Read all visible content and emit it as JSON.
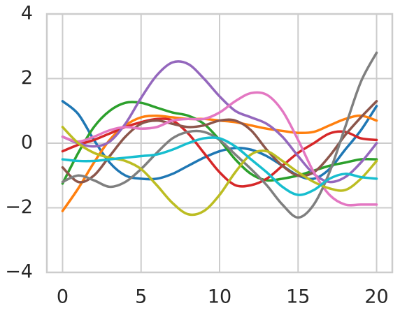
{
  "chart_data": {
    "type": "line",
    "x": [
      0,
      1,
      2,
      3,
      4,
      5,
      6,
      7,
      8,
      9,
      10,
      11,
      12,
      13,
      14,
      15,
      16,
      17,
      18,
      19,
      20
    ],
    "series": [
      {
        "color": "#1f77b4",
        "values": [
          1.3,
          0.9,
          0.1,
          -0.6,
          -1.0,
          -1.1,
          -1.1,
          -0.95,
          -0.7,
          -0.45,
          -0.25,
          -0.15,
          -0.2,
          -0.4,
          -0.7,
          -1.0,
          -1.1,
          -0.8,
          -0.2,
          0.4,
          1.15
        ]
      },
      {
        "color": "#ff7f0e",
        "values": [
          -2.1,
          -1.4,
          -0.6,
          0.1,
          0.55,
          0.8,
          0.85,
          0.8,
          0.75,
          0.75,
          0.7,
          0.65,
          0.55,
          0.45,
          0.38,
          0.32,
          0.35,
          0.55,
          0.75,
          0.85,
          0.7
        ]
      },
      {
        "color": "#2ca02c",
        "values": [
          -1.25,
          -0.3,
          0.5,
          1.0,
          1.25,
          1.25,
          1.1,
          0.95,
          0.85,
          0.6,
          0.1,
          -0.5,
          -0.95,
          -1.15,
          -1.1,
          -1.0,
          -0.85,
          -0.7,
          -0.6,
          -0.5,
          -0.5
        ]
      },
      {
        "color": "#d62728",
        "values": [
          -0.25,
          -0.05,
          0.1,
          0.3,
          0.5,
          0.65,
          0.75,
          0.7,
          0.3,
          -0.3,
          -0.9,
          -1.3,
          -1.3,
          -1.1,
          -0.7,
          -0.3,
          0.0,
          0.3,
          0.35,
          0.15,
          0.1
        ]
      },
      {
        "color": "#9467bd",
        "values": [
          0.2,
          0.0,
          -0.1,
          0.05,
          0.6,
          1.4,
          2.1,
          2.5,
          2.45,
          2.0,
          1.45,
          1.0,
          0.8,
          0.6,
          0.2,
          -0.4,
          -0.95,
          -1.2,
          -1.05,
          -0.6,
          0.0
        ]
      },
      {
        "color": "#8c564b",
        "values": [
          -0.75,
          -1.2,
          -1.0,
          -0.4,
          0.2,
          0.6,
          0.7,
          0.6,
          0.5,
          0.55,
          0.7,
          0.7,
          0.4,
          -0.2,
          -0.7,
          -1.0,
          -0.9,
          -0.4,
          0.25,
          0.8,
          1.3
        ]
      },
      {
        "color": "#e377c2",
        "values": [
          0.2,
          0.05,
          0.2,
          0.4,
          0.5,
          0.45,
          0.5,
          0.7,
          0.75,
          0.75,
          0.95,
          1.3,
          1.55,
          1.5,
          1.0,
          0.1,
          -0.9,
          -1.6,
          -1.9,
          -1.9,
          -1.9
        ]
      },
      {
        "color": "#7f7f7f",
        "values": [
          -1.2,
          -1.0,
          -1.15,
          -1.35,
          -1.2,
          -0.8,
          -0.3,
          0.15,
          0.35,
          0.35,
          0.1,
          -0.35,
          -0.8,
          -1.3,
          -1.9,
          -2.3,
          -1.9,
          -0.9,
          0.5,
          1.9,
          2.8
        ]
      },
      {
        "color": "#bcbd22",
        "values": [
          0.5,
          0.0,
          -0.3,
          -0.45,
          -0.55,
          -0.8,
          -1.3,
          -1.85,
          -2.2,
          -2.1,
          -1.6,
          -0.9,
          -0.35,
          -0.25,
          -0.55,
          -0.9,
          -1.2,
          -1.4,
          -1.45,
          -1.1,
          -0.55
        ]
      },
      {
        "color": "#17becf",
        "values": [
          -0.5,
          -0.55,
          -0.55,
          -0.5,
          -0.45,
          -0.4,
          -0.35,
          -0.2,
          0.0,
          0.15,
          0.15,
          -0.1,
          -0.5,
          -0.9,
          -1.35,
          -1.6,
          -1.45,
          -1.1,
          -0.95,
          -1.05,
          -1.1
        ]
      }
    ],
    "xlim": [
      -1,
      21
    ],
    "ylim": [
      -4,
      4
    ],
    "xticks": [
      0,
      5,
      10,
      15,
      20
    ],
    "yticks": [
      {
        "value": -4,
        "label": "−4"
      },
      {
        "value": -2,
        "label": "−2"
      },
      0,
      2,
      4
    ],
    "grid": true
  }
}
